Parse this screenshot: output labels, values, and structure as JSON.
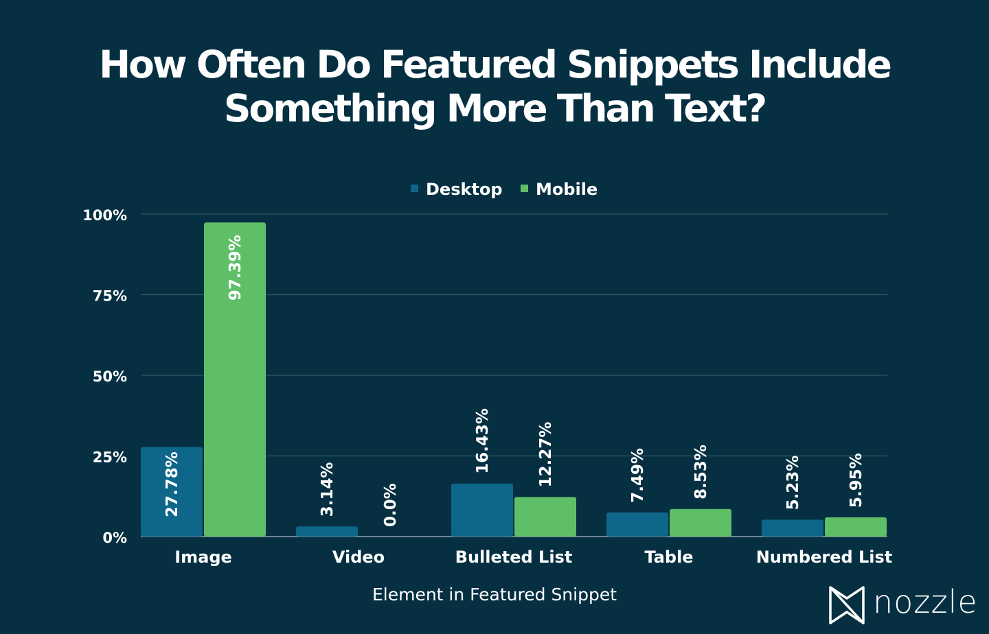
{
  "title_lines": [
    "How Often Do Featured Snippets Include",
    "Something More Than Text?"
  ],
  "brand": {
    "name": "nozzle",
    "icon": "nozzle-logo-icon"
  },
  "colors": {
    "background": "#063042",
    "desktop": "#0e6689",
    "mobile": "#5fbf69",
    "grid": "#2f5766",
    "text": "#ffffff"
  },
  "chart_data": {
    "type": "bar",
    "title": "How Often Do Featured Snippets Include Something More Than Text?",
    "xlabel": "Element in Featured Snippet",
    "ylabel": "",
    "ylim": [
      0,
      100
    ],
    "yticks": [
      0,
      25,
      50,
      75,
      100
    ],
    "ytick_labels": [
      "0%",
      "25%",
      "50%",
      "75%",
      "100%"
    ],
    "grid": true,
    "legend_position": "top-center",
    "categories": [
      "Image",
      "Video",
      "Bulleted List",
      "Table",
      "Numbered List"
    ],
    "series": [
      {
        "name": "Desktop",
        "values": [
          27.78,
          3.14,
          16.43,
          7.49,
          5.23
        ],
        "labels": [
          "27.78%",
          "3.14%",
          "16.43%",
          "7.49%",
          "5.23%"
        ]
      },
      {
        "name": "Mobile",
        "values": [
          97.39,
          0.0,
          12.27,
          8.53,
          5.95
        ],
        "labels": [
          "97.39%",
          "0.0%",
          "12.27%",
          "8.53%",
          "5.95%"
        ]
      }
    ]
  }
}
